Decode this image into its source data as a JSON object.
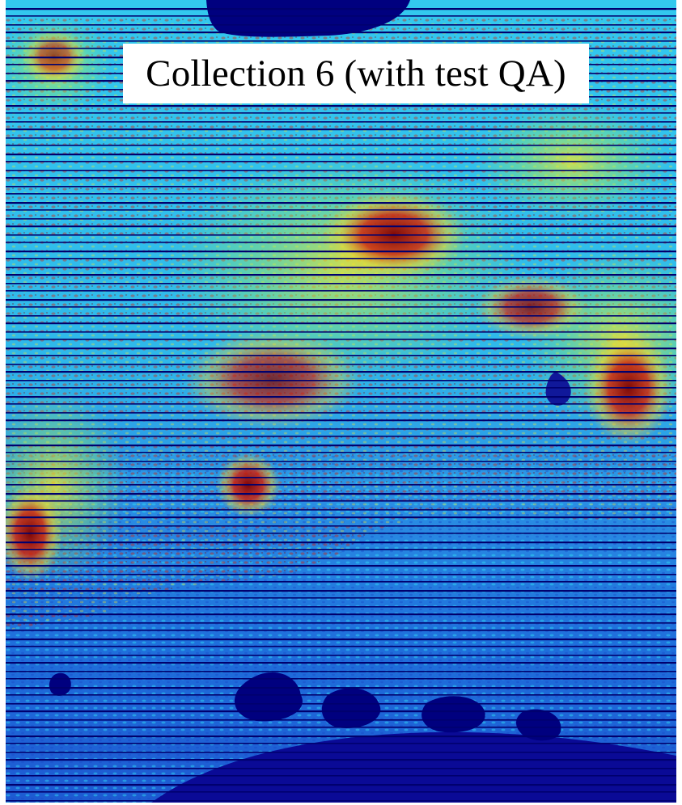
{
  "image": {
    "title": "Collection 6 (with test QA)",
    "description_colors": {
      "low": "#00007f",
      "blue": "#1f5ce0",
      "cyan": "#2fd6f2",
      "yellow": "#ffe81f",
      "red": "#d81e05",
      "darkred": "#7f0000",
      "stripe": "#00006e"
    }
  }
}
